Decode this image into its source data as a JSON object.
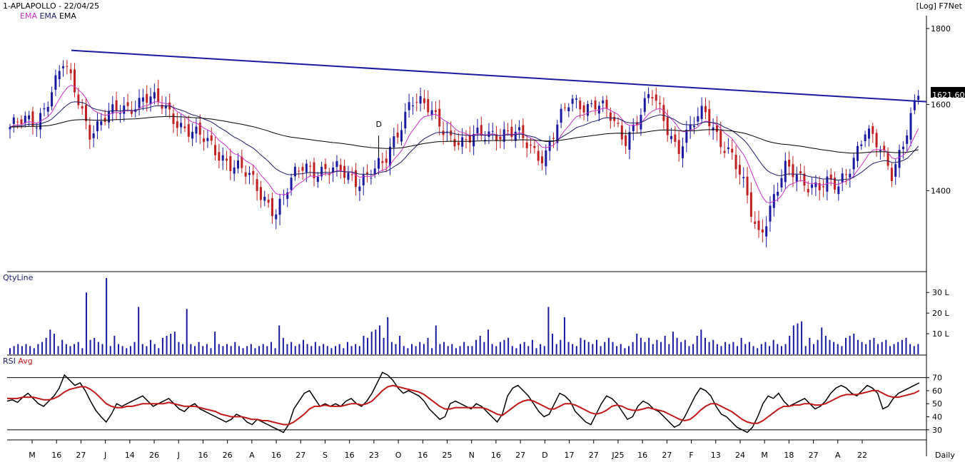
{
  "header": {
    "title": "1-APLAPOLLO - 22/04/25",
    "top_right": "[Log] F7Net",
    "ema_labels": [
      "EMA",
      "EMA",
      "EMA"
    ],
    "ema_colors": [
      "#cc33cc",
      "#1a1a66",
      "#000000"
    ]
  },
  "price_panel": {
    "current_price_label": "1621.60",
    "trendline_color": "#1a1aa0"
  },
  "volume_panel": {
    "label": "QtyLine"
  },
  "rsi_panel": {
    "label_rsi": "RSI",
    "label_avg": "Avg"
  },
  "footer": {
    "period": "Daily"
  },
  "chart_data": [
    {
      "type": "candlestick",
      "scale": "log",
      "ylim": [
        1250,
        1820
      ],
      "yticks": [
        1400,
        1600,
        1800
      ],
      "x_ticks": [
        "M",
        "16",
        "27",
        "J",
        "14",
        "26",
        "J",
        "16",
        "26",
        "A",
        "16",
        "27",
        "S",
        "16",
        "23",
        "O",
        "16",
        "25",
        "N",
        "16",
        "27",
        "D",
        "17",
        "27",
        "J25",
        "16",
        "27",
        "F",
        "13",
        "24",
        "M",
        "18",
        "27",
        "A",
        "22"
      ],
      "annotation": "D",
      "colors": {
        "up": "#1a1aa0",
        "down": "#c02020"
      },
      "ohlc_key_points": [
        {
          "x": "M",
          "close": 1545
        },
        {
          "x": "16",
          "close": 1560
        },
        {
          "x": "27",
          "close": 1700
        },
        {
          "x": "J",
          "close": 1540
        },
        {
          "x": "14",
          "close": 1580
        },
        {
          "x": "26",
          "close": 1620
        },
        {
          "x": "J",
          "close": 1580
        },
        {
          "x": "16",
          "close": 1520
        },
        {
          "x": "26",
          "close": 1480
        },
        {
          "x": "A",
          "close": 1420
        },
        {
          "x": "16",
          "close": 1360
        },
        {
          "x": "27",
          "close": 1460
        },
        {
          "x": "S",
          "close": 1440
        },
        {
          "x": "16",
          "close": 1430
        },
        {
          "x": "23",
          "close": 1450
        },
        {
          "x": "O",
          "close": 1620
        },
        {
          "x": "16",
          "close": 1560
        },
        {
          "x": "25",
          "close": 1500
        },
        {
          "x": "N",
          "close": 1540
        },
        {
          "x": "16",
          "close": 1520
        },
        {
          "x": "27",
          "close": 1480
        },
        {
          "x": "D",
          "close": 1610
        },
        {
          "x": "17",
          "close": 1600
        },
        {
          "x": "27",
          "close": 1520
        },
        {
          "x": "J25",
          "close": 1620
        },
        {
          "x": "16",
          "close": 1500
        },
        {
          "x": "27",
          "close": 1580
        },
        {
          "x": "F",
          "close": 1480
        },
        {
          "x": "13",
          "close": 1310
        },
        {
          "x": "24",
          "close": 1440
        },
        {
          "x": "M",
          "close": 1420
        },
        {
          "x": "18",
          "close": 1400
        },
        {
          "x": "27",
          "close": 1540
        },
        {
          "x": "A",
          "close": 1440
        },
        {
          "x": "22",
          "close": 1621.6
        }
      ],
      "last_close": 1621.6
    },
    {
      "type": "bar",
      "title": "QtyLine",
      "yticks": [
        "10 L",
        "20 L",
        "30 L"
      ],
      "ylim": [
        0,
        37
      ],
      "values": [
        3,
        4,
        5,
        4,
        5,
        4,
        3,
        5,
        6,
        8,
        12,
        10,
        4,
        7,
        5,
        4,
        5,
        6,
        3,
        30,
        7,
        8,
        6,
        5,
        37,
        4,
        9,
        5,
        4,
        3,
        4,
        6,
        23,
        5,
        4,
        7,
        5,
        3,
        8,
        9,
        10,
        11,
        6,
        5,
        22,
        5,
        4,
        6,
        4,
        5,
        3,
        11,
        5,
        4,
        5,
        4,
        6,
        4,
        3,
        4,
        5,
        3,
        4,
        5,
        4,
        6,
        3,
        14,
        8,
        5,
        6,
        4,
        5,
        7,
        5,
        4,
        6,
        4,
        5,
        4,
        3,
        4,
        5,
        3,
        6,
        4,
        5,
        4,
        9,
        8,
        11,
        12,
        14,
        8,
        18,
        6,
        5,
        9,
        4,
        3,
        5,
        4,
        6,
        5,
        8,
        3,
        14,
        5,
        6,
        4,
        5,
        3,
        4,
        6,
        4,
        4,
        7,
        9,
        6,
        12,
        5,
        4,
        6,
        7,
        8,
        4,
        3,
        5,
        6,
        4,
        7,
        3,
        5,
        4,
        23,
        10,
        5,
        7,
        18,
        6,
        5,
        4,
        8,
        7,
        6,
        5,
        7,
        4,
        6,
        8,
        6,
        4,
        5,
        3,
        4,
        6,
        10,
        8,
        6,
        8,
        5,
        7,
        6,
        9,
        5,
        11,
        8,
        6,
        7,
        4,
        5,
        9,
        12,
        8,
        6,
        7,
        5,
        4,
        6,
        5,
        6,
        4,
        8,
        5,
        6,
        4,
        3,
        5,
        6,
        4,
        7,
        5,
        4,
        5,
        9,
        14,
        15,
        16,
        4,
        8,
        5,
        7,
        13,
        9,
        7,
        6,
        5,
        4,
        8,
        9,
        10,
        7,
        6,
        5,
        7,
        8,
        5,
        6,
        7,
        4,
        5,
        6,
        7,
        8,
        5,
        4,
        5
      ]
    },
    {
      "type": "line",
      "title": "RSI",
      "ylim": [
        25,
        78
      ],
      "yticks": [
        30,
        40,
        50,
        60,
        70
      ],
      "reference_lines": [
        70,
        30
      ],
      "series": [
        {
          "name": "RSI",
          "color": "#000000",
          "values": [
            52,
            53,
            51,
            55,
            58,
            54,
            50,
            48,
            52,
            56,
            62,
            72,
            68,
            64,
            66,
            60,
            52,
            45,
            40,
            36,
            42,
            50,
            48,
            50,
            52,
            54,
            56,
            52,
            48,
            50,
            52,
            54,
            50,
            46,
            44,
            48,
            50,
            46,
            44,
            42,
            40,
            38,
            36,
            38,
            42,
            40,
            36,
            34,
            38,
            36,
            34,
            32,
            30,
            28,
            34,
            46,
            52,
            58,
            60,
            54,
            48,
            50,
            48,
            50,
            48,
            52,
            54,
            50,
            48,
            52,
            58,
            66,
            74,
            72,
            68,
            62,
            58,
            60,
            58,
            56,
            52,
            46,
            42,
            38,
            40,
            50,
            52,
            50,
            48,
            46,
            50,
            48,
            44,
            40,
            36,
            42,
            56,
            62,
            64,
            60,
            56,
            50,
            44,
            40,
            42,
            50,
            58,
            56,
            52,
            44,
            40,
            36,
            34,
            42,
            50,
            56,
            54,
            50,
            44,
            38,
            40,
            48,
            52,
            50,
            46,
            44,
            40,
            36,
            32,
            34,
            40,
            48,
            56,
            62,
            60,
            56,
            48,
            42,
            40,
            36,
            32,
            30,
            28,
            32,
            40,
            50,
            56,
            54,
            58,
            52,
            48,
            50,
            52,
            54,
            50,
            46,
            48,
            52,
            58,
            62,
            64,
            62,
            58,
            56,
            60,
            64,
            62,
            58,
            46,
            48,
            54,
            58,
            60,
            62,
            64,
            66
          ]
        },
        {
          "name": "Avg",
          "color": "#c01818",
          "values": [
            54,
            54,
            54,
            55,
            55,
            55,
            54,
            53,
            53,
            54,
            56,
            59,
            61,
            62,
            63,
            63,
            61,
            58,
            54,
            50,
            48,
            47,
            47,
            48,
            48,
            49,
            50,
            50,
            50,
            50,
            50,
            51,
            50,
            49,
            48,
            48,
            48,
            47,
            46,
            45,
            44,
            42,
            41,
            40,
            40,
            40,
            39,
            38,
            38,
            37,
            37,
            36,
            35,
            34,
            34,
            36,
            39,
            42,
            46,
            48,
            48,
            49,
            48,
            48,
            48,
            49,
            50,
            50,
            49,
            50,
            52,
            56,
            60,
            63,
            64,
            63,
            62,
            61,
            60,
            59,
            57,
            54,
            51,
            48,
            46,
            46,
            47,
            47,
            47,
            47,
            47,
            47,
            46,
            44,
            42,
            41,
            44,
            47,
            50,
            52,
            53,
            52,
            50,
            48,
            46,
            46,
            48,
            50,
            50,
            49,
            47,
            45,
            43,
            42,
            43,
            45,
            48,
            49,
            48,
            46,
            45,
            45,
            46,
            47,
            46,
            45,
            44,
            42,
            40,
            38,
            37,
            38,
            41,
            45,
            48,
            50,
            50,
            48,
            46,
            44,
            41,
            38,
            36,
            35,
            35,
            37,
            40,
            43,
            46,
            48,
            48,
            49,
            49,
            50,
            50,
            49,
            49,
            50,
            52,
            54,
            56,
            57,
            57,
            57,
            58,
            59,
            60,
            60,
            58,
            56,
            55,
            55,
            56,
            57,
            58,
            60
          ]
        }
      ]
    }
  ]
}
